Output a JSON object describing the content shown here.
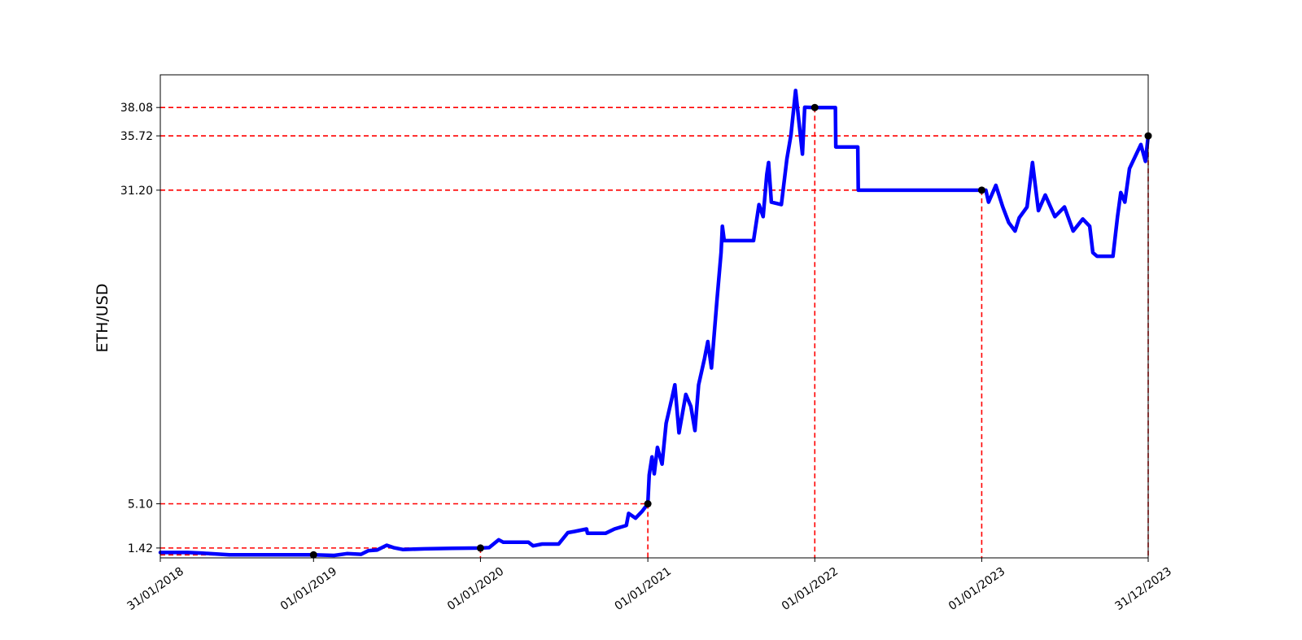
{
  "chart_data": {
    "type": "line",
    "title": "",
    "xlabel": "",
    "ylabel": "ETH/USD",
    "colors": {
      "series": "#0000ff",
      "reference_lines": "#ff0000",
      "markers": "#000000",
      "axes": "#000000"
    },
    "x_ticks": [
      "31/01/2018",
      "01/01/2019",
      "01/01/2020",
      "01/01/2021",
      "01/01/2022",
      "01/01/2023",
      "31/12/2023"
    ],
    "y_ticks": [
      "1.42",
      "5.10",
      "31.20",
      "35.72",
      "38.08"
    ],
    "xlim": [
      "2018-01-31",
      "2023-12-31"
    ],
    "ylim": [
      0.6,
      40.8
    ],
    "grid": false,
    "legend": "none",
    "reference_points": [
      {
        "date": "2019-01-01",
        "value": 0.85,
        "label": ""
      },
      {
        "date": "2020-01-01",
        "value": 1.42,
        "label": "1.42"
      },
      {
        "date": "2021-01-01",
        "value": 5.1,
        "label": "5.10"
      },
      {
        "date": "2022-01-01",
        "value": 38.08,
        "label": "38.08"
      },
      {
        "date": "2023-01-01",
        "value": 31.2,
        "label": "31.20"
      },
      {
        "date": "2023-12-31",
        "value": 35.72,
        "label": "35.72"
      }
    ],
    "series": [
      {
        "line_width": "thick",
        "points": [
          [
            "2018-01-31",
            1.05
          ],
          [
            "2018-04-01",
            1.05
          ],
          [
            "2018-05-01",
            1.0
          ],
          [
            "2018-07-01",
            0.85
          ],
          [
            "2018-10-01",
            0.85
          ],
          [
            "2019-01-01",
            0.85
          ],
          [
            "2019-02-15",
            0.8
          ],
          [
            "2019-03-15",
            0.95
          ],
          [
            "2019-04-15",
            0.9
          ],
          [
            "2019-05-01",
            1.2
          ],
          [
            "2019-05-20",
            1.25
          ],
          [
            "2019-06-10",
            1.65
          ],
          [
            "2019-06-25",
            1.45
          ],
          [
            "2019-07-15",
            1.3
          ],
          [
            "2019-09-01",
            1.35
          ],
          [
            "2019-11-01",
            1.4
          ],
          [
            "2020-01-01",
            1.42
          ],
          [
            "2020-01-20",
            1.45
          ],
          [
            "2020-02-10",
            2.1
          ],
          [
            "2020-02-20",
            1.9
          ],
          [
            "2020-04-15",
            1.9
          ],
          [
            "2020-04-25",
            1.6
          ],
          [
            "2020-05-15",
            1.75
          ],
          [
            "2020-06-20",
            1.75
          ],
          [
            "2020-07-10",
            2.7
          ],
          [
            "2020-07-25",
            2.8
          ],
          [
            "2020-08-20",
            3.0
          ],
          [
            "2020-08-22",
            2.65
          ],
          [
            "2020-10-01",
            2.65
          ],
          [
            "2020-10-20",
            3.0
          ],
          [
            "2020-11-15",
            3.3
          ],
          [
            "2020-11-20",
            4.3
          ],
          [
            "2020-12-05",
            3.9
          ],
          [
            "2020-12-20",
            4.5
          ],
          [
            "2021-01-01",
            5.1
          ],
          [
            "2021-01-04",
            7.5
          ],
          [
            "2021-01-10",
            9.0
          ],
          [
            "2021-01-15",
            7.6
          ],
          [
            "2021-01-22",
            9.8
          ],
          [
            "2021-02-01",
            8.4
          ],
          [
            "2021-02-10",
            11.8
          ],
          [
            "2021-02-22",
            13.8
          ],
          [
            "2021-03-01",
            15.0
          ],
          [
            "2021-03-10",
            11.0
          ],
          [
            "2021-03-25",
            14.2
          ],
          [
            "2021-04-05",
            13.2
          ],
          [
            "2021-04-14",
            11.2
          ],
          [
            "2021-04-22",
            15.0
          ],
          [
            "2021-05-05",
            17.2
          ],
          [
            "2021-05-12",
            18.6
          ],
          [
            "2021-05-20",
            16.4
          ],
          [
            "2021-06-01",
            22.0
          ],
          [
            "2021-06-10",
            26.0
          ],
          [
            "2021-06-13",
            28.2
          ],
          [
            "2021-06-17",
            27.0
          ],
          [
            "2021-08-20",
            27.0
          ],
          [
            "2021-09-01",
            30.0
          ],
          [
            "2021-09-10",
            29.0
          ],
          [
            "2021-09-18",
            32.5
          ],
          [
            "2021-09-22",
            33.5
          ],
          [
            "2021-09-28",
            30.2
          ],
          [
            "2021-10-20",
            30.0
          ],
          [
            "2021-11-01",
            33.8
          ],
          [
            "2021-11-10",
            35.8
          ],
          [
            "2021-11-20",
            39.5
          ],
          [
            "2021-11-27",
            37.0
          ],
          [
            "2021-12-05",
            34.2
          ],
          [
            "2021-12-10",
            38.1
          ],
          [
            "2022-01-01",
            38.08
          ],
          [
            "2022-02-15",
            38.08
          ],
          [
            "2022-02-16",
            34.8
          ],
          [
            "2022-04-05",
            34.8
          ],
          [
            "2022-04-06",
            31.2
          ],
          [
            "2022-12-31",
            31.2
          ],
          [
            "2023-01-10",
            31.2
          ],
          [
            "2023-01-16",
            30.2
          ],
          [
            "2023-02-01",
            31.6
          ],
          [
            "2023-02-16",
            29.8
          ],
          [
            "2023-03-01",
            28.5
          ],
          [
            "2023-03-15",
            27.8
          ],
          [
            "2023-03-24",
            28.9
          ],
          [
            "2023-04-10",
            29.8
          ],
          [
            "2023-04-22",
            33.5
          ],
          [
            "2023-05-05",
            29.5
          ],
          [
            "2023-05-20",
            30.8
          ],
          [
            "2023-06-10",
            29.0
          ],
          [
            "2023-07-01",
            29.8
          ],
          [
            "2023-07-20",
            27.8
          ],
          [
            "2023-08-10",
            28.8
          ],
          [
            "2023-08-25",
            28.2
          ],
          [
            "2023-09-01",
            26.0
          ],
          [
            "2023-09-10",
            25.7
          ],
          [
            "2023-10-15",
            25.7
          ],
          [
            "2023-10-25",
            29.0
          ],
          [
            "2023-11-01",
            31.0
          ],
          [
            "2023-11-10",
            30.2
          ],
          [
            "2023-11-20",
            33.0
          ],
          [
            "2023-12-05",
            34.2
          ],
          [
            "2023-12-15",
            35.0
          ],
          [
            "2023-12-25",
            33.6
          ],
          [
            "2023-12-31",
            35.72
          ]
        ]
      }
    ]
  }
}
